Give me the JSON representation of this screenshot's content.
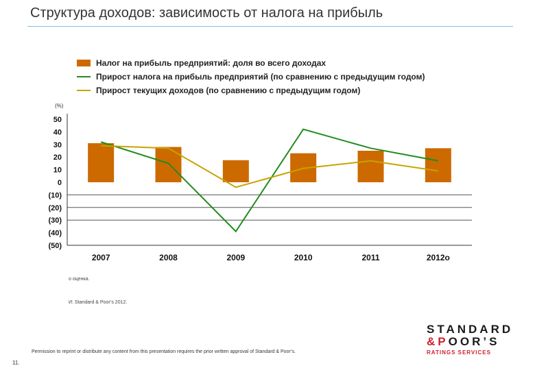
{
  "title": "Структура доходов: зависимость от налога на прибыль",
  "unit_label": "(%)",
  "note": "o   оценка.",
  "source": "И: Standard & Poor’s 2012.",
  "permission": "Permission to reprint or distribute any content from this presentation requires the prior written approval of Standard & Poor’s.",
  "page_number": "11.",
  "logo": {
    "line1": "STANDARD",
    "line2_amp": "&",
    "line2_p": "P",
    "line2_rest": "OOR’S",
    "sub": "RATINGS SERVICES"
  },
  "colors": {
    "bar": "#cc6a00",
    "green": "#228b22",
    "olive": "#c8a200",
    "accent": "#d1202e"
  },
  "chart_data": {
    "type": "bar",
    "categories": [
      "2007",
      "2008",
      "2009",
      "2010",
      "2011",
      "2012o"
    ],
    "ylim": [
      -50,
      50
    ],
    "yticks": [
      50,
      40,
      30,
      20,
      10,
      0,
      -10,
      -20,
      -30,
      -40,
      -50
    ],
    "ytick_labels": [
      "50",
      "40",
      "30",
      "20",
      "10",
      "0",
      "(10)",
      "(20)",
      "(30)",
      "(40)",
      "(50)"
    ],
    "gridlines": [
      -10,
      -20,
      -30
    ],
    "legend_position": "top",
    "series": [
      {
        "name": "Налог на прибыль предприятий: доля во всего  доходах",
        "type": "bar",
        "values": [
          31,
          28,
          17.5,
          23,
          25,
          27
        ]
      },
      {
        "name": "Прирост налога на прибыль предприятий (по сравнению с предыдущим годом)",
        "type": "line",
        "values": [
          32,
          15,
          -39,
          42,
          27,
          17
        ]
      },
      {
        "name": "Прирост текущих доходов (по сравнению с предыдущим годом)",
        "type": "line",
        "values": [
          29,
          27,
          -4,
          11,
          17,
          9
        ]
      }
    ]
  }
}
